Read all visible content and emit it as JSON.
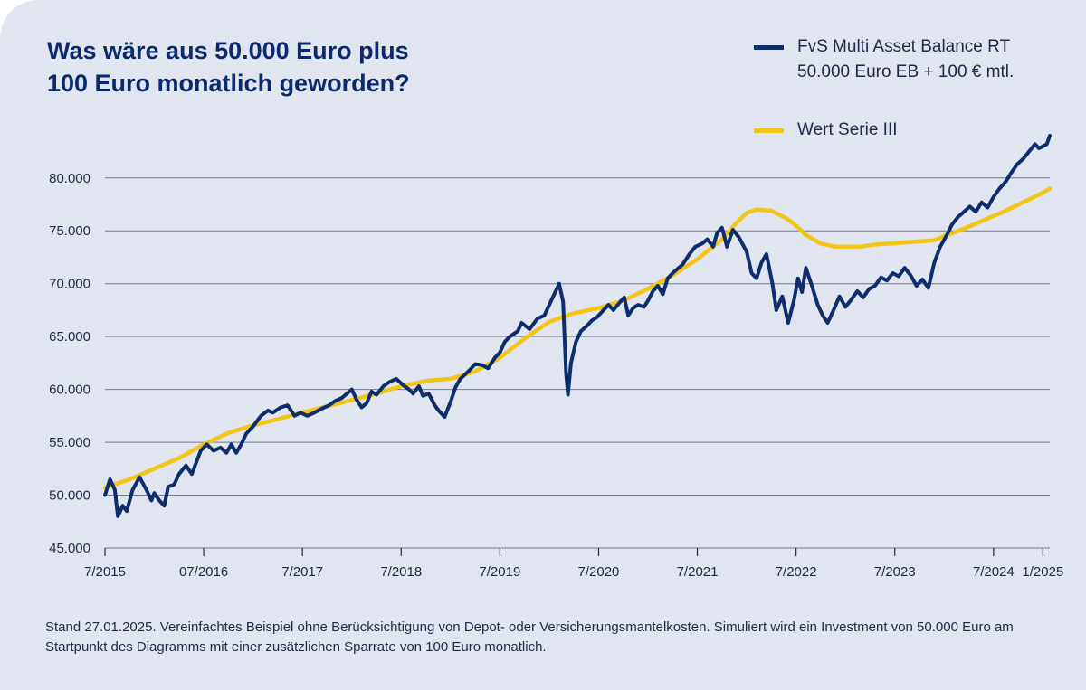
{
  "title": {
    "line1": "Was wäre aus 50.000 Euro plus",
    "line2": "100 Euro monatlich geworden?"
  },
  "legend": {
    "series1_line1": "FvS Multi Asset Balance RT",
    "series1_line2": "50.000 Euro EB + 100 € mtl.",
    "series2": "Wert Serie III"
  },
  "colors": {
    "background": "#e0e5f0",
    "title": "#0b2a6b",
    "series1": "#0d2d6c",
    "series2": "#f3c516",
    "grid": "#707a8c"
  },
  "footnote": "Stand 27.01.2025. Vereinfachtes Beispiel ohne Berücksichtigung von Depot- oder Versicherungsmantelkosten. Simuliert wird ein Investment von 50.000 Euro am Startpunkt des Diagramms mit einer zusätzlichen Sparrate von 100 Euro monatlich.",
  "chart_data": {
    "type": "line",
    "title": "Was wäre aus 50.000 Euro plus 100 Euro monatlich geworden?",
    "xlabel": "",
    "ylabel": "",
    "x_range": [
      2015.5,
      2025.07
    ],
    "ylim": [
      45000,
      84000
    ],
    "y_ticks": [
      45000,
      50000,
      55000,
      60000,
      65000,
      70000,
      75000,
      80000
    ],
    "y_tick_labels": [
      "45.000",
      "50.000",
      "55.000",
      "60.000",
      "65.000",
      "70.000",
      "75.000",
      "80.000"
    ],
    "x_ticks": [
      {
        "x": 2015.5,
        "label": "7/2015"
      },
      {
        "x": 2016.5,
        "label": "07/2016"
      },
      {
        "x": 2017.5,
        "label": "7/2017"
      },
      {
        "x": 2018.5,
        "label": "7/2018"
      },
      {
        "x": 2019.5,
        "label": "7/2019"
      },
      {
        "x": 2020.5,
        "label": "7/2020"
      },
      {
        "x": 2021.5,
        "label": "7/2021"
      },
      {
        "x": 2022.5,
        "label": "7/2022"
      },
      {
        "x": 2023.5,
        "label": "7/2023"
      },
      {
        "x": 2024.5,
        "label": "7/2024"
      },
      {
        "x": 2025.0,
        "label": "1/2025"
      }
    ],
    "grid": true,
    "legend_position": "top-right",
    "series": [
      {
        "name": "FvS Multi Asset Balance RT 50.000 Euro EB + 100 € mtl.",
        "color": "#0d2d6c",
        "points": [
          [
            2015.5,
            50000
          ],
          [
            2015.55,
            51500
          ],
          [
            2015.6,
            50500
          ],
          [
            2015.63,
            48000
          ],
          [
            2015.68,
            49000
          ],
          [
            2015.72,
            48500
          ],
          [
            2015.78,
            50500
          ],
          [
            2015.85,
            51700
          ],
          [
            2015.92,
            50500
          ],
          [
            2015.97,
            49500
          ],
          [
            2016.0,
            50200
          ],
          [
            2016.05,
            49500
          ],
          [
            2016.1,
            49000
          ],
          [
            2016.14,
            50800
          ],
          [
            2016.2,
            51000
          ],
          [
            2016.25,
            52000
          ],
          [
            2016.32,
            52800
          ],
          [
            2016.38,
            52000
          ],
          [
            2016.42,
            53000
          ],
          [
            2016.47,
            54200
          ],
          [
            2016.53,
            54800
          ],
          [
            2016.6,
            54200
          ],
          [
            2016.67,
            54500
          ],
          [
            2016.73,
            54000
          ],
          [
            2016.78,
            54800
          ],
          [
            2016.83,
            54000
          ],
          [
            2016.88,
            54800
          ],
          [
            2016.93,
            55800
          ],
          [
            2017.0,
            56500
          ],
          [
            2017.08,
            57500
          ],
          [
            2017.15,
            58000
          ],
          [
            2017.2,
            57800
          ],
          [
            2017.28,
            58300
          ],
          [
            2017.35,
            58500
          ],
          [
            2017.42,
            57500
          ],
          [
            2017.48,
            57800
          ],
          [
            2017.55,
            57500
          ],
          [
            2017.62,
            57800
          ],
          [
            2017.7,
            58200
          ],
          [
            2017.77,
            58500
          ],
          [
            2017.83,
            58900
          ],
          [
            2017.9,
            59200
          ],
          [
            2017.95,
            59600
          ],
          [
            2018.0,
            60000
          ],
          [
            2018.05,
            59000
          ],
          [
            2018.1,
            58300
          ],
          [
            2018.15,
            58700
          ],
          [
            2018.2,
            59800
          ],
          [
            2018.25,
            59500
          ],
          [
            2018.32,
            60300
          ],
          [
            2018.38,
            60700
          ],
          [
            2018.45,
            61000
          ],
          [
            2018.52,
            60400
          ],
          [
            2018.58,
            60000
          ],
          [
            2018.62,
            59600
          ],
          [
            2018.68,
            60300
          ],
          [
            2018.72,
            59400
          ],
          [
            2018.78,
            59600
          ],
          [
            2018.84,
            58500
          ],
          [
            2018.88,
            58000
          ],
          [
            2018.94,
            57400
          ],
          [
            2019.0,
            58800
          ],
          [
            2019.05,
            60200
          ],
          [
            2019.1,
            61000
          ],
          [
            2019.18,
            61700
          ],
          [
            2019.25,
            62400
          ],
          [
            2019.32,
            62300
          ],
          [
            2019.38,
            62000
          ],
          [
            2019.45,
            63000
          ],
          [
            2019.5,
            63500
          ],
          [
            2019.55,
            64500
          ],
          [
            2019.6,
            65000
          ],
          [
            2019.68,
            65500
          ],
          [
            2019.72,
            66300
          ],
          [
            2019.8,
            65700
          ],
          [
            2019.88,
            66700
          ],
          [
            2019.95,
            67000
          ],
          [
            2020.0,
            68000
          ],
          [
            2020.05,
            69000
          ],
          [
            2020.1,
            70000
          ],
          [
            2020.14,
            68300
          ],
          [
            2020.17,
            61500
          ],
          [
            2020.19,
            59500
          ],
          [
            2020.22,
            62500
          ],
          [
            2020.27,
            64500
          ],
          [
            2020.32,
            65500
          ],
          [
            2020.38,
            66000
          ],
          [
            2020.43,
            66500
          ],
          [
            2020.48,
            66800
          ],
          [
            2020.55,
            67500
          ],
          [
            2020.6,
            68000
          ],
          [
            2020.65,
            67500
          ],
          [
            2020.72,
            68300
          ],
          [
            2020.76,
            68700
          ],
          [
            2020.8,
            67000
          ],
          [
            2020.85,
            67700
          ],
          [
            2020.9,
            68000
          ],
          [
            2020.96,
            67800
          ],
          [
            2021.0,
            68400
          ],
          [
            2021.05,
            69300
          ],
          [
            2021.1,
            69800
          ],
          [
            2021.15,
            69000
          ],
          [
            2021.2,
            70500
          ],
          [
            2021.25,
            71000
          ],
          [
            2021.3,
            71400
          ],
          [
            2021.35,
            71800
          ],
          [
            2021.42,
            72800
          ],
          [
            2021.48,
            73500
          ],
          [
            2021.55,
            73800
          ],
          [
            2021.6,
            74200
          ],
          [
            2021.66,
            73500
          ],
          [
            2021.7,
            74800
          ],
          [
            2021.75,
            75300
          ],
          [
            2021.8,
            73500
          ],
          [
            2021.86,
            75100
          ],
          [
            2021.92,
            74400
          ],
          [
            2022.0,
            73000
          ],
          [
            2022.05,
            71000
          ],
          [
            2022.1,
            70500
          ],
          [
            2022.15,
            72000
          ],
          [
            2022.2,
            72800
          ],
          [
            2022.26,
            70000
          ],
          [
            2022.3,
            67500
          ],
          [
            2022.36,
            68800
          ],
          [
            2022.42,
            66300
          ],
          [
            2022.48,
            68500
          ],
          [
            2022.52,
            70500
          ],
          [
            2022.56,
            69200
          ],
          [
            2022.6,
            71500
          ],
          [
            2022.66,
            69800
          ],
          [
            2022.72,
            68000
          ],
          [
            2022.77,
            67000
          ],
          [
            2022.82,
            66300
          ],
          [
            2022.88,
            67500
          ],
          [
            2022.94,
            68800
          ],
          [
            2023.0,
            67800
          ],
          [
            2023.06,
            68500
          ],
          [
            2023.12,
            69300
          ],
          [
            2023.18,
            68700
          ],
          [
            2023.24,
            69500
          ],
          [
            2023.3,
            69800
          ],
          [
            2023.36,
            70600
          ],
          [
            2023.42,
            70300
          ],
          [
            2023.48,
            71000
          ],
          [
            2023.54,
            70700
          ],
          [
            2023.6,
            71500
          ],
          [
            2023.66,
            70800
          ],
          [
            2023.72,
            69800
          ],
          [
            2023.78,
            70400
          ],
          [
            2023.84,
            69600
          ],
          [
            2023.9,
            72000
          ],
          [
            2023.96,
            73500
          ],
          [
            2024.02,
            74500
          ],
          [
            2024.08,
            75600
          ],
          [
            2024.14,
            76300
          ],
          [
            2024.2,
            76800
          ],
          [
            2024.26,
            77300
          ],
          [
            2024.32,
            76800
          ],
          [
            2024.38,
            77700
          ],
          [
            2024.44,
            77200
          ],
          [
            2024.5,
            78200
          ],
          [
            2024.56,
            79000
          ],
          [
            2024.62,
            79600
          ],
          [
            2024.68,
            80500
          ],
          [
            2024.74,
            81300
          ],
          [
            2024.8,
            81800
          ],
          [
            2024.86,
            82500
          ],
          [
            2024.92,
            83200
          ],
          [
            2024.96,
            82800
          ],
          [
            2025.0,
            83000
          ],
          [
            2025.04,
            83200
          ],
          [
            2025.07,
            84000
          ]
        ]
      },
      {
        "name": "Wert Serie III",
        "color": "#f3c516",
        "points": [
          [
            2015.5,
            50700
          ],
          [
            2015.75,
            51500
          ],
          [
            2016.0,
            52500
          ],
          [
            2016.25,
            53500
          ],
          [
            2016.5,
            54800
          ],
          [
            2016.75,
            55900
          ],
          [
            2017.0,
            56600
          ],
          [
            2017.25,
            57200
          ],
          [
            2017.5,
            57800
          ],
          [
            2017.75,
            58400
          ],
          [
            2018.0,
            59000
          ],
          [
            2018.25,
            59600
          ],
          [
            2018.5,
            60300
          ],
          [
            2018.75,
            60800
          ],
          [
            2019.0,
            61000
          ],
          [
            2019.25,
            61700
          ],
          [
            2019.5,
            63000
          ],
          [
            2019.75,
            64800
          ],
          [
            2020.0,
            66400
          ],
          [
            2020.25,
            67200
          ],
          [
            2020.5,
            67700
          ],
          [
            2020.75,
            68400
          ],
          [
            2021.0,
            69500
          ],
          [
            2021.25,
            70800
          ],
          [
            2021.5,
            72300
          ],
          [
            2021.75,
            74200
          ],
          [
            2021.9,
            75800
          ],
          [
            2022.0,
            76700
          ],
          [
            2022.1,
            77000
          ],
          [
            2022.25,
            76900
          ],
          [
            2022.4,
            76200
          ],
          [
            2022.5,
            75500
          ],
          [
            2022.6,
            74600
          ],
          [
            2022.75,
            73800
          ],
          [
            2022.9,
            73500
          ],
          [
            2023.0,
            73500
          ],
          [
            2023.15,
            73500
          ],
          [
            2023.3,
            73700
          ],
          [
            2023.45,
            73800
          ],
          [
            2023.6,
            73900
          ],
          [
            2023.75,
            74000
          ],
          [
            2023.9,
            74100
          ],
          [
            2024.0,
            74500
          ],
          [
            2024.2,
            75200
          ],
          [
            2024.4,
            76000
          ],
          [
            2024.6,
            76800
          ],
          [
            2024.8,
            77700
          ],
          [
            2025.0,
            78600
          ],
          [
            2025.07,
            79000
          ]
        ]
      }
    ]
  }
}
